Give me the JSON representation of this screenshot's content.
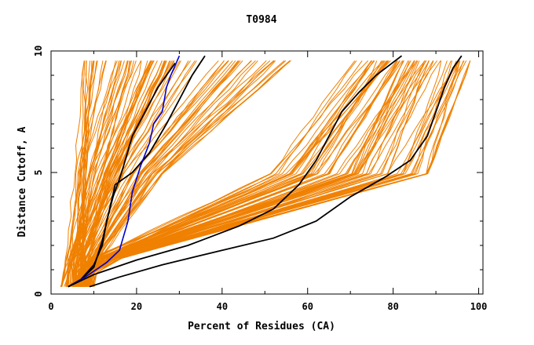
{
  "chart_data": {
    "type": "line",
    "title": "T0984",
    "xlabel": "Percent of Residues (CA)",
    "ylabel": "Distance Cutoff, A",
    "xlim": [
      0,
      101
    ],
    "ylim": [
      0,
      10
    ],
    "x_ticks": [
      0,
      20,
      40,
      60,
      80,
      100
    ],
    "y_ticks": [
      0,
      5,
      10
    ],
    "grid": false,
    "colors": {
      "background_curves": "#f08000",
      "highlight": "#000000",
      "reference": "#0000cc"
    },
    "background_bundles": [
      {
        "name": "steep-group",
        "count": 55,
        "x_at_low": [
          2,
          4
        ],
        "x_at_mid": [
          4,
          16
        ],
        "x_at_top": [
          7,
          30
        ],
        "x_start": [
          2,
          9
        ]
      },
      {
        "name": "middle-group",
        "count": 35,
        "x_at_low": [
          4,
          9
        ],
        "x_at_mid": [
          14,
          26
        ],
        "x_at_top": [
          28,
          56
        ],
        "x_start": [
          4,
          9
        ]
      },
      {
        "name": "shallow-group",
        "count": 70,
        "x_at_low": [
          5,
          10
        ],
        "x_at_mid": [
          50,
          88
        ],
        "x_at_top": [
          70,
          98
        ],
        "x_start": [
          5,
          10
        ]
      }
    ],
    "series": [
      {
        "name": "highlight-1",
        "color": "#000000",
        "points": [
          [
            4,
            0.3
          ],
          [
            7,
            0.6
          ],
          [
            10,
            1.2
          ],
          [
            12,
            2
          ],
          [
            13,
            3
          ],
          [
            14.5,
            4
          ],
          [
            16.5,
            5
          ],
          [
            19,
            6.5
          ],
          [
            22,
            7.5
          ],
          [
            25,
            8.5
          ],
          [
            27,
            9
          ],
          [
            29,
            9.5
          ]
        ]
      },
      {
        "name": "highlight-2",
        "color": "#000000",
        "points": [
          [
            4,
            0.3
          ],
          [
            7,
            0.6
          ],
          [
            10,
            1.1
          ],
          [
            12,
            2.2
          ],
          [
            15,
            4.5
          ],
          [
            19,
            5
          ],
          [
            23,
            5.8
          ],
          [
            27,
            7
          ],
          [
            30,
            8
          ],
          [
            33,
            9
          ],
          [
            36,
            9.8
          ]
        ]
      },
      {
        "name": "reference",
        "color": "#0000cc",
        "points": [
          [
            4,
            0.3
          ],
          [
            8,
            0.7
          ],
          [
            13,
            1.3
          ],
          [
            16,
            1.8
          ],
          [
            18,
            3
          ],
          [
            19,
            4.2
          ],
          [
            21,
            5.3
          ],
          [
            23,
            6.2
          ],
          [
            24,
            7
          ],
          [
            26,
            7.5
          ],
          [
            26.5,
            8
          ],
          [
            27,
            8.5
          ],
          [
            28,
            9
          ],
          [
            30,
            9.8
          ]
        ]
      },
      {
        "name": "highlight-3",
        "color": "#000000",
        "points": [
          [
            4,
            0.3
          ],
          [
            10,
            0.8
          ],
          [
            20,
            1.4
          ],
          [
            32,
            2
          ],
          [
            44,
            2.8
          ],
          [
            52,
            3.5
          ],
          [
            58,
            4.5
          ],
          [
            62,
            5.5
          ],
          [
            65,
            6.5
          ],
          [
            68,
            7.5
          ],
          [
            72,
            8.3
          ],
          [
            76,
            9
          ],
          [
            82,
            9.8
          ]
        ]
      },
      {
        "name": "highlight-4",
        "color": "#000000",
        "points": [
          [
            9,
            0.3
          ],
          [
            16,
            0.7
          ],
          [
            26,
            1.2
          ],
          [
            40,
            1.8
          ],
          [
            52,
            2.3
          ],
          [
            62,
            3
          ],
          [
            70,
            4
          ],
          [
            78,
            4.8
          ],
          [
            84,
            5.5
          ],
          [
            88,
            6.5
          ],
          [
            90,
            7.5
          ],
          [
            92,
            8.5
          ],
          [
            94,
            9.3
          ],
          [
            96,
            9.8
          ]
        ]
      }
    ]
  }
}
